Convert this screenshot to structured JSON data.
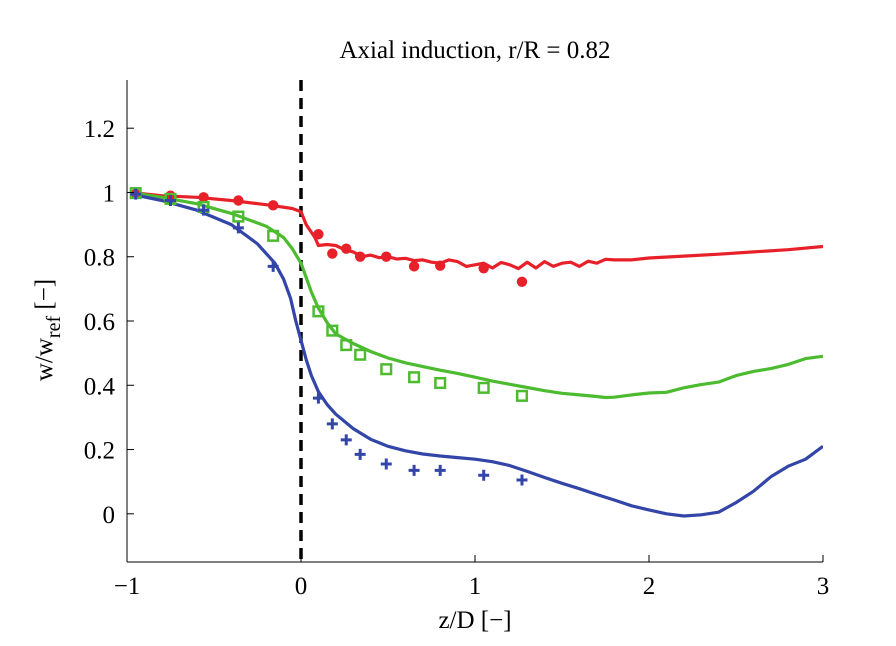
{
  "chart_data": {
    "type": "line",
    "title": "Axial induction, r/R = 0.82",
    "xlabel": "z/D [−]",
    "ylabel_main": "w/w",
    "ylabel_sub": "ref",
    "ylabel_suffix": " [−]",
    "xlim": [
      -1,
      3
    ],
    "ylim": [
      -0.15,
      1.35
    ],
    "xticks": [
      -1,
      0,
      1,
      2,
      3
    ],
    "xtick_labels": [
      "−1",
      "0",
      "1",
      "2",
      "3"
    ],
    "yticks": [
      0,
      0.2,
      0.4,
      0.6,
      0.8,
      1,
      1.2
    ],
    "ytick_labels": [
      "0",
      "0.2",
      "0.4",
      "0.6",
      "0.8",
      "1",
      "1.2"
    ],
    "grid": false,
    "rotor_plane_x": 0,
    "series": [
      {
        "kind": "line",
        "color": "#e8202a",
        "x": [
          -0.98,
          -0.8,
          -0.6,
          -0.4,
          -0.2,
          -0.05,
          0,
          0.03,
          0.08,
          0.1,
          0.15,
          0.2,
          0.25,
          0.3,
          0.35,
          0.4,
          0.45,
          0.5,
          0.55,
          0.6,
          0.65,
          0.7,
          0.75,
          0.8,
          0.85,
          0.9,
          0.95,
          1.0,
          1.05,
          1.1,
          1.15,
          1.2,
          1.25,
          1.3,
          1.35,
          1.4,
          1.45,
          1.5,
          1.55,
          1.6,
          1.65,
          1.7,
          1.75,
          1.8,
          1.9,
          2.0,
          2.2,
          2.4,
          2.6,
          2.8,
          3.0
        ],
        "y": [
          1.0,
          0.99,
          0.985,
          0.975,
          0.962,
          0.95,
          0.94,
          0.9,
          0.86,
          0.835,
          0.838,
          0.835,
          0.822,
          0.815,
          0.8,
          0.805,
          0.797,
          0.8,
          0.793,
          0.795,
          0.788,
          0.79,
          0.783,
          0.78,
          0.79,
          0.785,
          0.77,
          0.775,
          0.78,
          0.765,
          0.782,
          0.775,
          0.763,
          0.783,
          0.765,
          0.785,
          0.77,
          0.78,
          0.783,
          0.77,
          0.786,
          0.78,
          0.792,
          0.79,
          0.79,
          0.796,
          0.802,
          0.808,
          0.815,
          0.822,
          0.832
        ]
      },
      {
        "kind": "line",
        "color": "#4cbb30",
        "x": [
          -0.98,
          -0.8,
          -0.6,
          -0.4,
          -0.2,
          -0.1,
          -0.05,
          0,
          0.03,
          0.06,
          0.1,
          0.15,
          0.2,
          0.3,
          0.4,
          0.5,
          0.6,
          0.7,
          0.8,
          0.9,
          1.0,
          1.1,
          1.2,
          1.3,
          1.4,
          1.5,
          1.6,
          1.7,
          1.75,
          1.8,
          1.9,
          2.0,
          2.1,
          2.2,
          2.3,
          2.4,
          2.5,
          2.6,
          2.7,
          2.8,
          2.9,
          3.0
        ],
        "y": [
          1.0,
          0.985,
          0.965,
          0.935,
          0.895,
          0.86,
          0.825,
          0.78,
          0.735,
          0.69,
          0.64,
          0.595,
          0.56,
          0.53,
          0.505,
          0.485,
          0.47,
          0.458,
          0.447,
          0.437,
          0.425,
          0.413,
          0.403,
          0.393,
          0.383,
          0.375,
          0.37,
          0.365,
          0.362,
          0.363,
          0.37,
          0.376,
          0.378,
          0.392,
          0.402,
          0.41,
          0.43,
          0.443,
          0.452,
          0.465,
          0.483,
          0.49
        ]
      },
      {
        "kind": "line",
        "color": "#3346a8",
        "x": [
          -0.98,
          -0.8,
          -0.6,
          -0.4,
          -0.25,
          -0.15,
          -0.1,
          -0.06,
          -0.03,
          0,
          0.03,
          0.06,
          0.1,
          0.15,
          0.2,
          0.3,
          0.4,
          0.5,
          0.6,
          0.7,
          0.8,
          0.9,
          1.0,
          1.1,
          1.2,
          1.3,
          1.4,
          1.5,
          1.6,
          1.7,
          1.8,
          1.9,
          2.0,
          2.1,
          2.2,
          2.3,
          2.4,
          2.5,
          2.6,
          2.7,
          2.8,
          2.9,
          3.0
        ],
        "y": [
          0.995,
          0.975,
          0.945,
          0.9,
          0.84,
          0.78,
          0.73,
          0.67,
          0.6,
          0.54,
          0.48,
          0.43,
          0.38,
          0.34,
          0.31,
          0.265,
          0.232,
          0.21,
          0.196,
          0.186,
          0.18,
          0.175,
          0.17,
          0.162,
          0.15,
          0.132,
          0.113,
          0.095,
          0.078,
          0.06,
          0.043,
          0.025,
          0.012,
          0.0,
          -0.007,
          -0.003,
          0.005,
          0.035,
          0.07,
          0.115,
          0.148,
          0.17,
          0.21
        ]
      },
      {
        "kind": "markers",
        "marker": "circle",
        "color": "#e8202a",
        "x": [
          -0.95,
          -0.75,
          -0.56,
          -0.36,
          -0.16,
          0.1,
          0.18,
          0.26,
          0.34,
          0.49,
          0.65,
          0.8,
          1.05,
          1.27
        ],
        "y": [
          0.995,
          0.99,
          0.985,
          0.975,
          0.96,
          0.87,
          0.81,
          0.825,
          0.8,
          0.8,
          0.77,
          0.772,
          0.764,
          0.722
        ]
      },
      {
        "kind": "markers",
        "marker": "square",
        "color": "#4cbb30",
        "x": [
          -0.95,
          -0.75,
          -0.56,
          -0.36,
          -0.16,
          0.1,
          0.18,
          0.26,
          0.34,
          0.49,
          0.65,
          0.8,
          1.05,
          1.27
        ],
        "y": [
          0.998,
          0.98,
          0.955,
          0.925,
          0.865,
          0.63,
          0.57,
          0.525,
          0.495,
          0.45,
          0.425,
          0.407,
          0.392,
          0.367
        ]
      },
      {
        "kind": "markers",
        "marker": "plus",
        "color": "#3346a8",
        "x": [
          -0.95,
          -0.75,
          -0.56,
          -0.36,
          -0.16,
          0.1,
          0.18,
          0.26,
          0.34,
          0.49,
          0.65,
          0.8,
          1.05,
          1.27
        ],
        "y": [
          0.995,
          0.975,
          0.945,
          0.89,
          0.77,
          0.36,
          0.28,
          0.23,
          0.185,
          0.155,
          0.135,
          0.135,
          0.12,
          0.105
        ]
      }
    ]
  }
}
